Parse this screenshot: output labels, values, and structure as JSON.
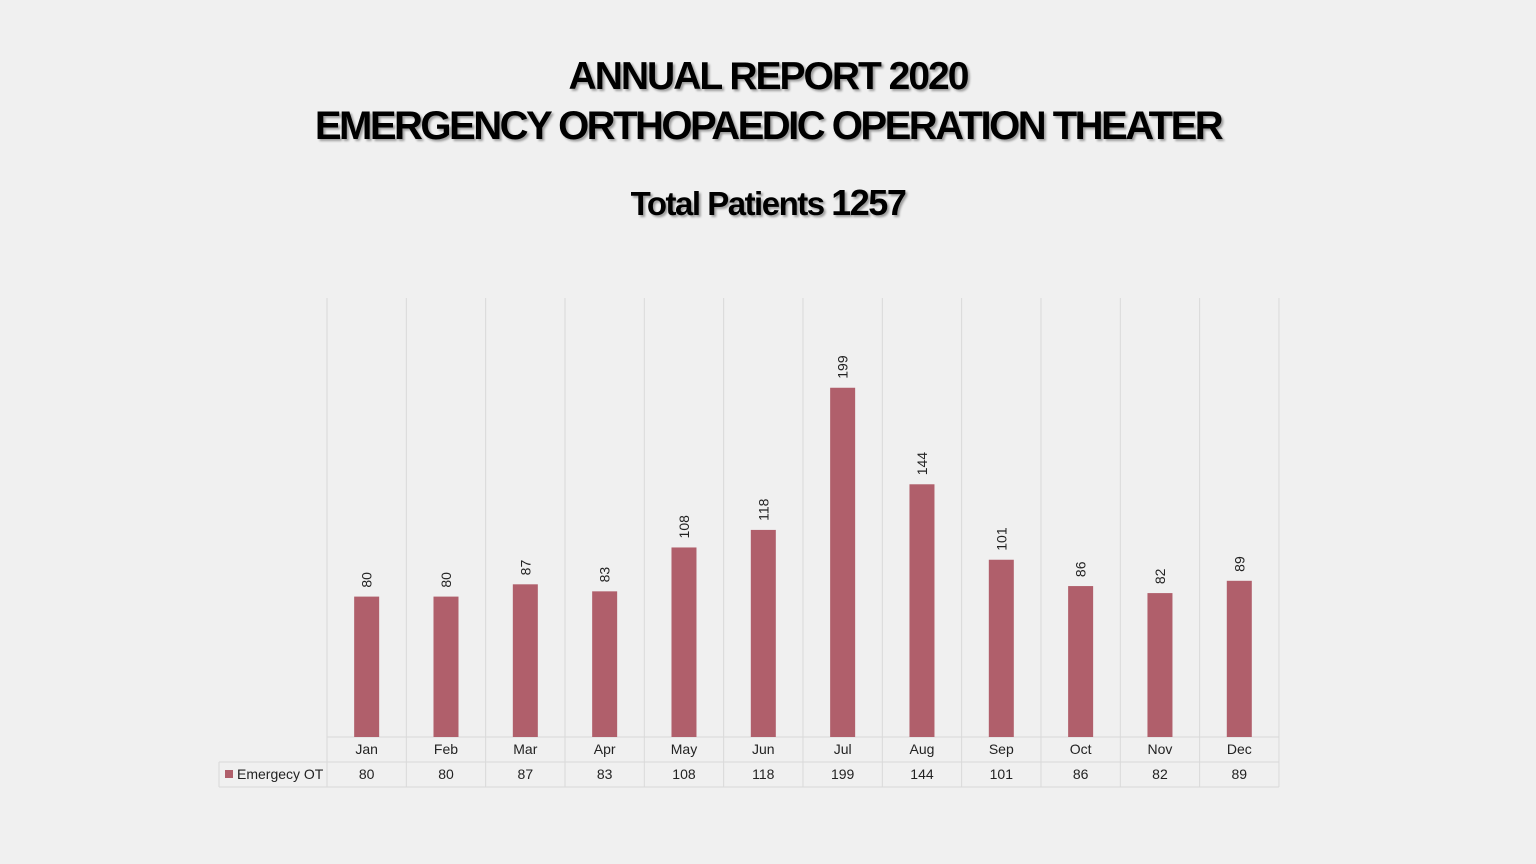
{
  "header": {
    "title_line1": "ANNUAL REPORT 2020",
    "title_line2": "EMERGENCY ORTHOPAEDIC OPERATION THEATER",
    "subtitle_label": "Total Patients",
    "subtitle_value": "1257"
  },
  "colors": {
    "background": "#f0f0f0",
    "bar": "#b05f6b",
    "grid": "#d9d9d9",
    "text": "#222222"
  },
  "chart_data": {
    "type": "bar",
    "categories": [
      "Jan",
      "Feb",
      "Mar",
      "Apr",
      "May",
      "Jun",
      "Jul",
      "Aug",
      "Sep",
      "Oct",
      "Nov",
      "Dec"
    ],
    "series": [
      {
        "name": "Emergecy OT",
        "values": [
          80,
          80,
          87,
          83,
          108,
          118,
          199,
          144,
          101,
          86,
          82,
          89
        ]
      }
    ],
    "title": "",
    "xlabel": "",
    "ylabel": "",
    "ylim": [
      0,
      250
    ],
    "data_labels": true,
    "data_table": true,
    "grid": "vertical"
  }
}
